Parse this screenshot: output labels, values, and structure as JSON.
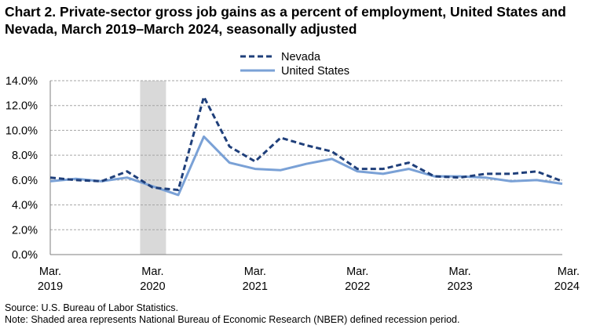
{
  "chart_title": "Chart 2. Private-sector gross job gains as a percent of employment, United States and Nevada, March 2019–March 2024, seasonally adjusted",
  "source": "Source: U.S. Bureau of Labor Statistics.",
  "note": "Note: Shaded area represents National Bureau of Economic Research (NBER) defined recession period.",
  "chart_data": {
    "type": "line",
    "title": "Chart 2. Private-sector gross job gains as a percent of employment, United States and Nevada, March 2019–March 2024, seasonally adjusted",
    "x": [
      "2019-03",
      "2019-06",
      "2019-09",
      "2019-12",
      "2020-03",
      "2020-06",
      "2020-09",
      "2020-12",
      "2021-03",
      "2021-06",
      "2021-09",
      "2021-12",
      "2022-03",
      "2022-06",
      "2022-09",
      "2022-12",
      "2023-03",
      "2023-06",
      "2023-09",
      "2023-12",
      "2024-03"
    ],
    "x_tick_labels": [
      {
        "month": "Mar.",
        "year": "2019"
      },
      {
        "month": "Mar.",
        "year": "2020"
      },
      {
        "month": "Mar.",
        "year": "2021"
      },
      {
        "month": "Mar.",
        "year": "2022"
      },
      {
        "month": "Mar.",
        "year": "2023"
      },
      {
        "month": "Mar.",
        "year": "2024"
      }
    ],
    "y_ticks": [
      "0.0%",
      "2.0%",
      "4.0%",
      "6.0%",
      "8.0%",
      "10.0%",
      "12.0%",
      "14.0%"
    ],
    "ylim": [
      0,
      14
    ],
    "grid": true,
    "legend_placement": "top-center",
    "recession_shading": {
      "start": "2020-03",
      "end": "2020-04",
      "color": "#d9d9d9"
    },
    "series": [
      {
        "name": "Nevada",
        "style": "dashed",
        "color": "#1f3f7a",
        "values": [
          6.2,
          6.0,
          5.9,
          6.7,
          5.4,
          5.2,
          12.7,
          8.7,
          7.5,
          9.4,
          8.8,
          8.3,
          6.9,
          6.9,
          7.4,
          6.3,
          6.2,
          6.5,
          6.5,
          6.7,
          5.9
        ]
      },
      {
        "name": "United States",
        "style": "solid",
        "color": "#7aa1d6",
        "values": [
          5.9,
          6.1,
          5.9,
          6.2,
          5.5,
          4.8,
          9.5,
          7.4,
          6.9,
          6.8,
          7.3,
          7.7,
          6.7,
          6.5,
          6.9,
          6.3,
          6.3,
          6.2,
          5.9,
          6.0,
          5.7
        ]
      }
    ]
  }
}
